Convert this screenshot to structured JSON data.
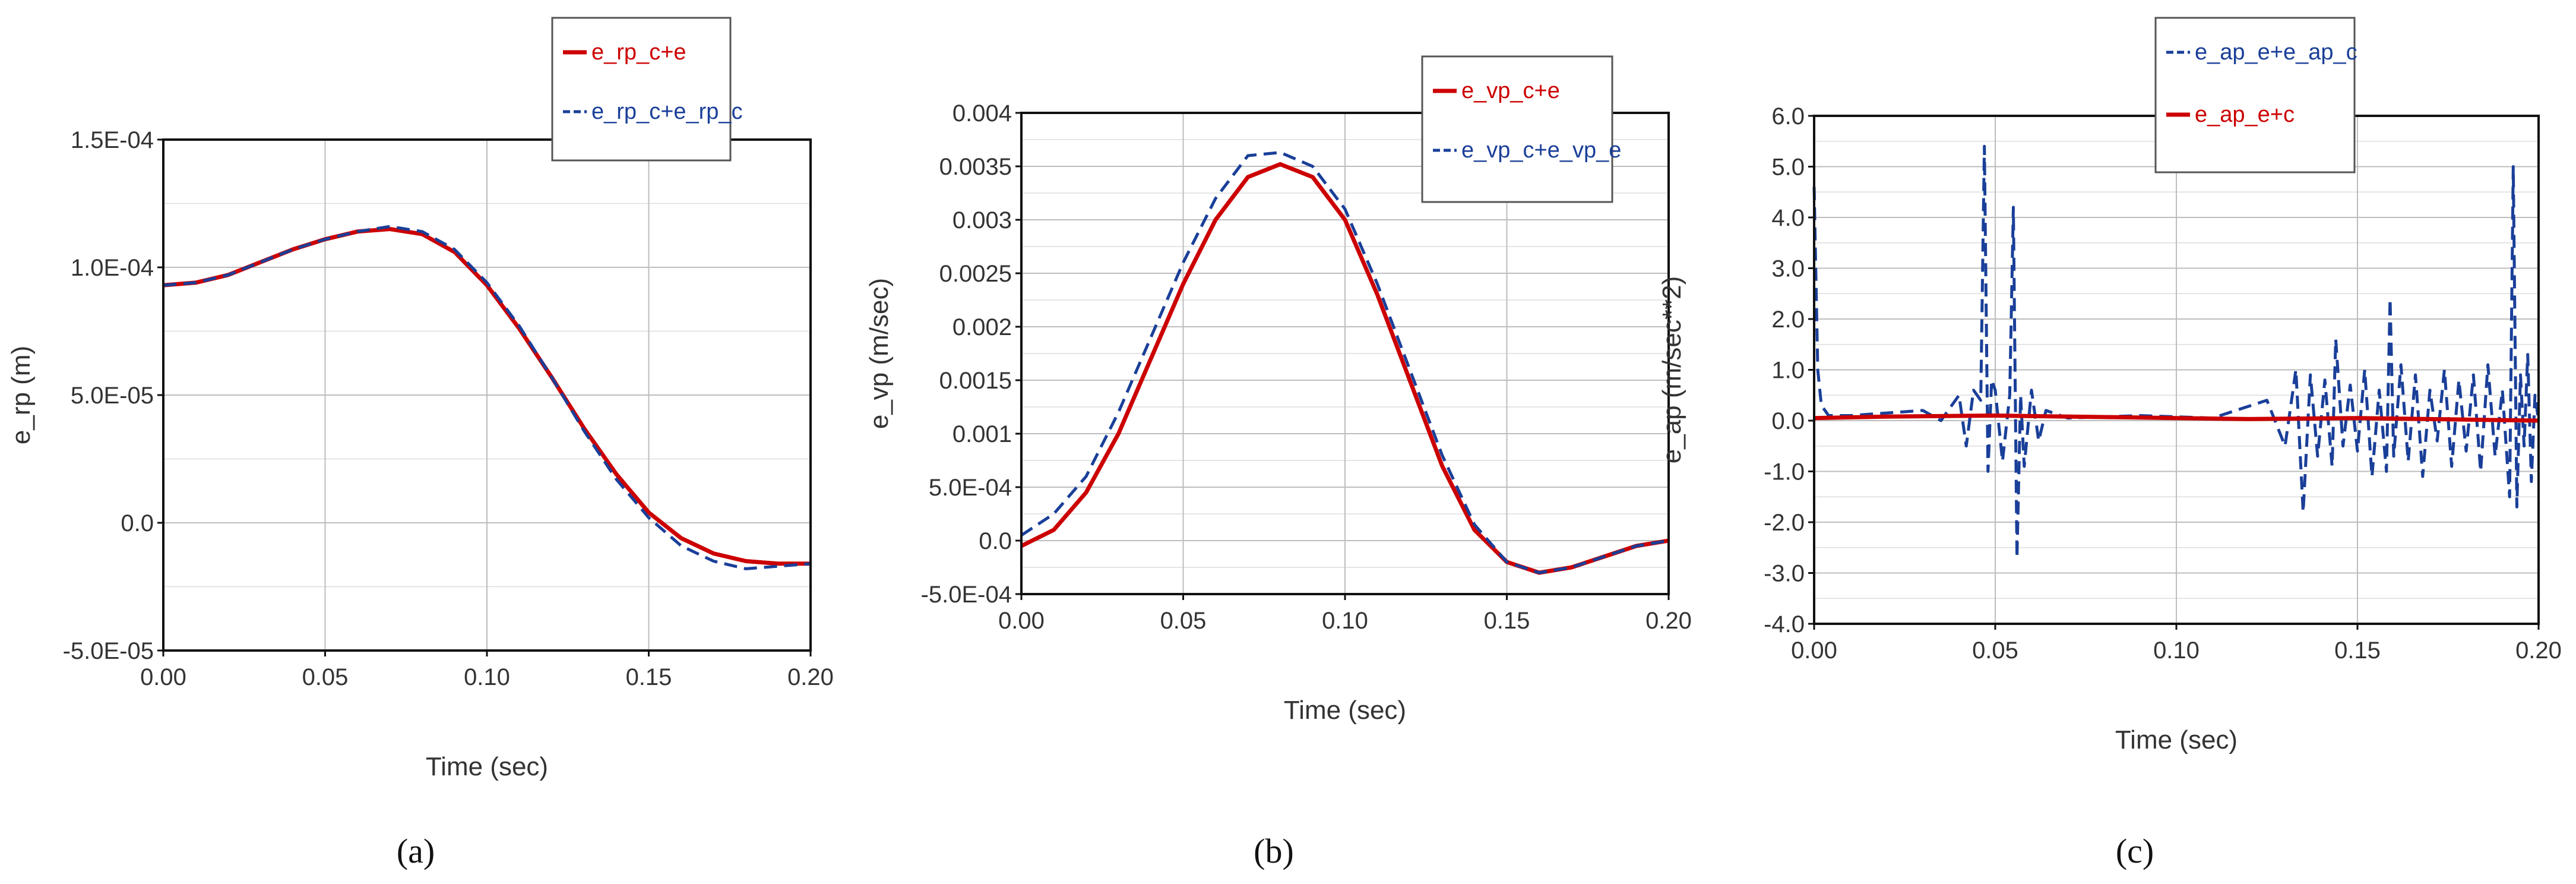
{
  "panel_labels": [
    "(a)",
    "(b)",
    "(c)"
  ],
  "chart_data": [
    {
      "type": "line",
      "panel": "(a)",
      "title": "",
      "xlabel": "Time (sec)",
      "ylabel": "e_rp (m)",
      "xlim": [
        0,
        0.2
      ],
      "ylim": [
        -5e-05,
        0.00015
      ],
      "xticks": [
        0,
        0.05,
        0.1,
        0.15,
        0.2
      ],
      "xtick_labels": [
        "0.00",
        "0.05",
        "0.10",
        "0.15",
        "0.20"
      ],
      "yticks": [
        -5e-05,
        0,
        5e-05,
        0.0001,
        0.00015
      ],
      "ytick_labels": [
        "-5.0E-05",
        "0.0",
        "5.0E-05",
        "1.0E-04",
        "1.5E-04"
      ],
      "grid": true,
      "legend_position": "top-right-outside",
      "series": [
        {
          "name": "e_rp_c+e",
          "color": "#cc0000",
          "style": "solid",
          "x": [
            0,
            0.01,
            0.02,
            0.03,
            0.04,
            0.05,
            0.06,
            0.07,
            0.08,
            0.09,
            0.1,
            0.11,
            0.12,
            0.13,
            0.14,
            0.15,
            0.16,
            0.17,
            0.18,
            0.19,
            0.2
          ],
          "y": [
            9.3e-05,
            9.4e-05,
            9.7e-05,
            0.000102,
            0.000107,
            0.000111,
            0.000114,
            0.000115,
            0.000113,
            0.000106,
            9.3e-05,
            7.6e-05,
            5.7e-05,
            3.7e-05,
            1.9e-05,
            4e-06,
            -6e-06,
            -1.2e-05,
            -1.5e-05,
            -1.6e-05,
            -1.6e-05
          ]
        },
        {
          "name": "e_rp_c+e_rp_c",
          "color": "#1a3f99",
          "style": "dashed",
          "x": [
            0,
            0.01,
            0.02,
            0.03,
            0.04,
            0.05,
            0.06,
            0.07,
            0.08,
            0.09,
            0.1,
            0.11,
            0.12,
            0.13,
            0.14,
            0.15,
            0.16,
            0.17,
            0.18,
            0.19,
            0.2
          ],
          "y": [
            9.3e-05,
            9.4e-05,
            9.7e-05,
            0.000102,
            0.000107,
            0.000111,
            0.000114,
            0.000116,
            0.000114,
            0.000107,
            9.4e-05,
            7.7e-05,
            5.7e-05,
            3.6e-05,
            1.7e-05,
            2e-06,
            -9e-06,
            -1.5e-05,
            -1.8e-05,
            -1.7e-05,
            -1.6e-05
          ]
        }
      ]
    },
    {
      "type": "line",
      "panel": "(b)",
      "title": "",
      "xlabel": "Time (sec)",
      "ylabel": "e_vp (m/sec)",
      "xlim": [
        0,
        0.2
      ],
      "ylim": [
        -0.0005,
        0.004
      ],
      "xticks": [
        0,
        0.05,
        0.1,
        0.15,
        0.2
      ],
      "xtick_labels": [
        "0.00",
        "0.05",
        "0.10",
        "0.15",
        "0.20"
      ],
      "yticks": [
        -0.0005,
        0,
        0.0005,
        0.001,
        0.0015,
        0.002,
        0.0025,
        0.003,
        0.0035,
        0.004
      ],
      "ytick_labels": [
        "-5.0E-04",
        "0.0",
        "5.0E-04",
        "0.001",
        "0.0015",
        "0.002",
        "0.0025",
        "0.003",
        "0.0035",
        "0.004"
      ],
      "grid": true,
      "legend_position": "top-right-outside",
      "series": [
        {
          "name": "e_vp_c+e",
          "color": "#cc0000",
          "style": "solid",
          "x": [
            0,
            0.01,
            0.02,
            0.03,
            0.04,
            0.05,
            0.06,
            0.07,
            0.08,
            0.09,
            0.1,
            0.11,
            0.12,
            0.13,
            0.14,
            0.15,
            0.16,
            0.17,
            0.18,
            0.19,
            0.2
          ],
          "y": [
            -5e-05,
            0.0001,
            0.00045,
            0.001,
            0.0017,
            0.0024,
            0.003,
            0.0034,
            0.00352,
            0.0034,
            0.003,
            0.0023,
            0.0015,
            0.0007,
            0.0001,
            -0.0002,
            -0.0003,
            -0.00025,
            -0.00015,
            -5e-05,
            0
          ]
        },
        {
          "name": "e_vp_c+e_vp_e",
          "color": "#1a3f99",
          "style": "dashed",
          "x": [
            0,
            0.01,
            0.02,
            0.03,
            0.04,
            0.05,
            0.06,
            0.07,
            0.08,
            0.09,
            0.1,
            0.11,
            0.12,
            0.13,
            0.14,
            0.15,
            0.16,
            0.17,
            0.18,
            0.19,
            0.2
          ],
          "y": [
            5e-05,
            0.00025,
            0.0006,
            0.0012,
            0.0019,
            0.0026,
            0.0032,
            0.0036,
            0.00363,
            0.0035,
            0.0031,
            0.0024,
            0.0016,
            0.0008,
            0.00015,
            -0.0002,
            -0.0003,
            -0.00025,
            -0.00015,
            -5e-05,
            0
          ]
        }
      ]
    },
    {
      "type": "line",
      "panel": "(c)",
      "title": "",
      "xlabel": "Time (sec)",
      "ylabel": "e_ap (m/sec**2)",
      "xlim": [
        0,
        0.2
      ],
      "ylim": [
        -4,
        6
      ],
      "xticks": [
        0,
        0.05,
        0.1,
        0.15,
        0.2
      ],
      "xtick_labels": [
        "0.00",
        "0.05",
        "0.10",
        "0.15",
        "0.20"
      ],
      "yticks": [
        -4,
        -3,
        -2,
        -1,
        0,
        1,
        2,
        3,
        4,
        5,
        6
      ],
      "ytick_labels": [
        "-4.0",
        "-3.0",
        "-2.0",
        "-1.0",
        "0.0",
        "1.0",
        "2.0",
        "3.0",
        "4.0",
        "5.0",
        "6.0"
      ],
      "grid": true,
      "legend_position": "top-right-outside",
      "series": [
        {
          "name": "e_ap_e+e_ap_c",
          "color": "#1a3f99",
          "style": "dashed",
          "x": [
            0,
            0.001,
            0.002,
            0.004,
            0.01,
            0.02,
            0.03,
            0.035,
            0.04,
            0.042,
            0.044,
            0.046,
            0.047,
            0.048,
            0.049,
            0.05,
            0.052,
            0.054,
            0.055,
            0.056,
            0.057,
            0.058,
            0.06,
            0.062,
            0.064,
            0.07,
            0.09,
            0.11,
            0.125,
            0.13,
            0.133,
            0.135,
            0.137,
            0.139,
            0.141,
            0.143,
            0.144,
            0.146,
            0.148,
            0.15,
            0.152,
            0.154,
            0.156,
            0.158,
            0.159,
            0.16,
            0.162,
            0.164,
            0.166,
            0.168,
            0.17,
            0.172,
            0.174,
            0.176,
            0.178,
            0.18,
            0.182,
            0.184,
            0.186,
            0.188,
            0.19,
            0.192,
            0.193,
            0.194,
            0.195,
            0.196,
            0.197,
            0.198,
            0.199,
            0.2
          ],
          "y": [
            4.6,
            1.0,
            0.3,
            0.1,
            0.1,
            0.15,
            0.2,
            0.0,
            0.5,
            -0.5,
            0.6,
            0.4,
            5.4,
            -1.0,
            0.8,
            0.6,
            -0.8,
            0.5,
            4.2,
            -2.7,
            0.5,
            -0.9,
            0.6,
            -0.4,
            0.2,
            0.05,
            0.1,
            0.05,
            0.4,
            -0.5,
            1.0,
            -1.8,
            0.9,
            -0.7,
            0.8,
            -0.9,
            1.6,
            -0.5,
            0.7,
            -0.6,
            1.0,
            -1.1,
            0.6,
            -1.0,
            2.4,
            -0.7,
            1.1,
            -0.8,
            0.9,
            -1.1,
            0.6,
            -0.4,
            1.0,
            -0.9,
            0.8,
            -0.6,
            0.9,
            -1.0,
            1.1,
            -0.7,
            0.6,
            -1.5,
            5.0,
            -1.7,
            0.9,
            -0.5,
            1.3,
            -1.2,
            0.5,
            0.0
          ]
        },
        {
          "name": "e_ap_e+c",
          "color": "#cc0000",
          "style": "solid",
          "x": [
            0,
            0.02,
            0.05,
            0.08,
            0.1,
            0.12,
            0.15,
            0.18,
            0.2
          ],
          "y": [
            0.05,
            0.08,
            0.1,
            0.07,
            0.05,
            0.03,
            0.05,
            0.02,
            0.0
          ]
        }
      ]
    }
  ]
}
